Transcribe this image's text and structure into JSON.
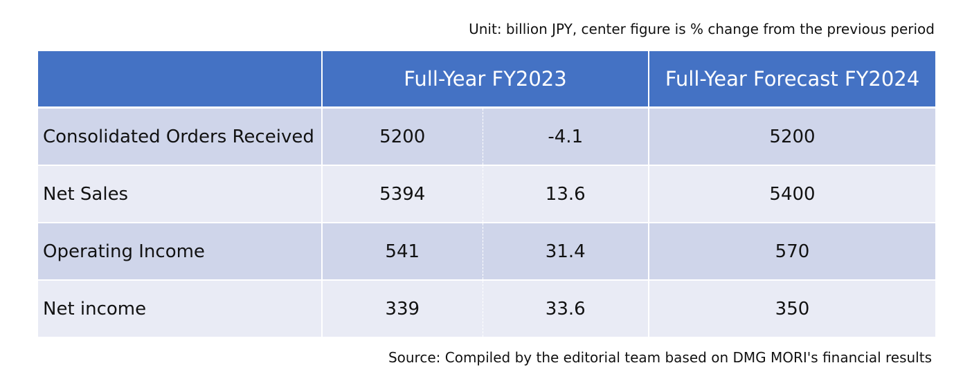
{
  "unit_note": "Unit: billion JPY, center figure is % change from the previous period",
  "table": {
    "headers": {
      "label": "",
      "fy2023": "Full-Year FY2023",
      "forecast_fy2024": "Full-Year Forecast FY2024"
    },
    "rows": [
      {
        "label": "Consolidated Orders Received",
        "fy2023_value": "5200",
        "fy2023_change": "-4.1",
        "fy2024_forecast": "5200"
      },
      {
        "label": "Net Sales",
        "fy2023_value": "5394",
        "fy2023_change": "13.6",
        "fy2024_forecast": "5400"
      },
      {
        "label": "Operating Income",
        "fy2023_value": "541",
        "fy2023_change": "31.4",
        "fy2024_forecast": "570"
      },
      {
        "label": "Net income",
        "fy2023_value": "339",
        "fy2023_change": "33.6",
        "fy2024_forecast": "350"
      }
    ]
  },
  "source_note": "Source: Compiled by the editorial team based on DMG MORI's financial results",
  "colors": {
    "header_bg": "#4472c4",
    "row_dark": "#cfd5ea",
    "row_light": "#e9ebf5"
  }
}
